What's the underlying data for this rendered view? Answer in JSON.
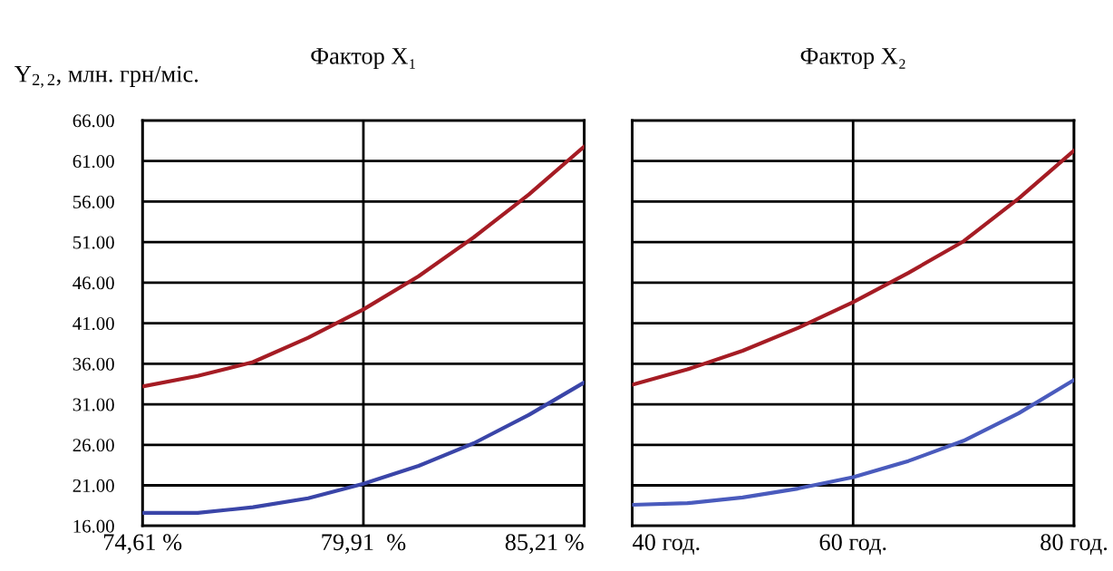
{
  "chart_data": [
    {
      "type": "line",
      "title": "Фактор X₁",
      "ylabel": "Y$_{2,2}$, млн. грн/міс.",
      "x": [
        74.61,
        75.935,
        77.26,
        78.585,
        79.91,
        81.235,
        82.56,
        83.885,
        85.21
      ],
      "xlim": [
        74.61,
        85.21
      ],
      "xticks": [
        {
          "value": 74.61,
          "label": "74,61 %"
        },
        {
          "value": 79.91,
          "label": "79,91  %"
        },
        {
          "value": 85.21,
          "label": "85,21 %"
        }
      ],
      "ylim": [
        16,
        66
      ],
      "yticks": [
        {
          "value": 16,
          "label": "16.00"
        },
        {
          "value": 21,
          "label": "21.00"
        },
        {
          "value": 26,
          "label": "26.00"
        },
        {
          "value": 31,
          "label": "31.00"
        },
        {
          "value": 36,
          "label": "36.00"
        },
        {
          "value": 41,
          "label": "41.00"
        },
        {
          "value": 46,
          "label": "46.00"
        },
        {
          "value": 51,
          "label": "51.00"
        },
        {
          "value": 56,
          "label": "56.00"
        },
        {
          "value": 61,
          "label": "61.00"
        },
        {
          "value": 66,
          "label": "66.00"
        }
      ],
      "grid": true,
      "series": [
        {
          "color": "#a51c24",
          "values": [
            33.2,
            34.5,
            36.2,
            39.2,
            42.7,
            46.8,
            51.6,
            56.9,
            62.8
          ]
        },
        {
          "color": "#3a45a8",
          "values": [
            17.6,
            17.6,
            18.3,
            19.4,
            21.2,
            23.4,
            26.2,
            29.7,
            33.7
          ]
        }
      ]
    },
    {
      "type": "line",
      "title": "Фактор X₂",
      "x": [
        40,
        45,
        50,
        55,
        60,
        65,
        70,
        75,
        80
      ],
      "xlim": [
        40,
        80
      ],
      "xticks": [
        {
          "value": 40,
          "label": "40 год."
        },
        {
          "value": 60,
          "label": "60 год."
        },
        {
          "value": 80,
          "label": "80 год."
        }
      ],
      "ylim": [
        16,
        66
      ],
      "yticks": [
        16,
        21,
        26,
        31,
        36,
        41,
        46,
        51,
        56,
        61,
        66
      ],
      "grid": true,
      "tick_labels": "x",
      "series": [
        {
          "color": "#a51c24",
          "values": [
            33.4,
            35.3,
            37.6,
            40.4,
            43.6,
            47.2,
            51.1,
            56.4,
            62.3
          ]
        },
        {
          "color": "#4a5bbd",
          "values": [
            18.6,
            18.8,
            19.5,
            20.6,
            22.0,
            24.0,
            26.5,
            29.9,
            34.0
          ]
        }
      ]
    }
  ]
}
